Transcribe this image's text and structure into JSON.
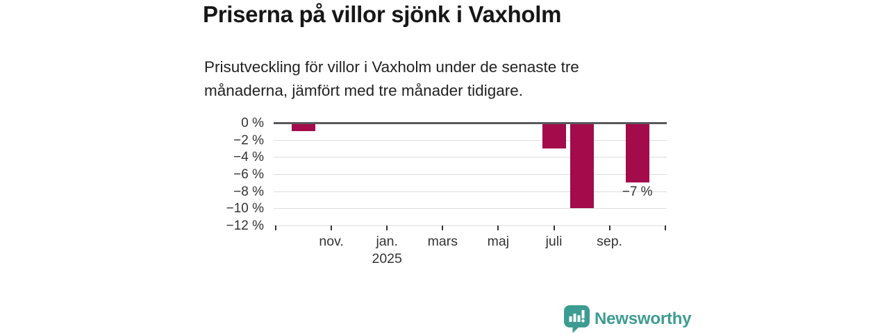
{
  "header": {
    "title": "Priserna på villor sjönk i Vaxholm",
    "subtitle": "Prisutveckling för villor i Vaxholm under de senaste tre månaderna, jämfört med tre månader tidigare.",
    "subtitle_lines": [
      "Prisutveckling för villor i Vaxholm under de senaste tre",
      "månaderna, jämfört med tre månader tidigare."
    ]
  },
  "chart_data": {
    "type": "bar",
    "title": "Priserna på villor sjönk i Vaxholm",
    "x": [
      "2024-10",
      "2025-07",
      "2025-08",
      "2025-10"
    ],
    "values": [
      -1,
      -3,
      -10,
      -7
    ],
    "unit": "%",
    "ylim": [
      -12,
      0
    ],
    "grid": "horizontal",
    "bar_color": "#a30b4a",
    "x_domain": [
      "2024-09",
      "2025-11"
    ],
    "x_ticks": [
      {
        "month": "2024-09",
        "label": ""
      },
      {
        "month": "2024-11",
        "label": "nov."
      },
      {
        "month": "2025-01",
        "label": "jan.",
        "sublabel": "2025"
      },
      {
        "month": "2025-03",
        "label": "mars"
      },
      {
        "month": "2025-05",
        "label": "maj"
      },
      {
        "month": "2025-07",
        "label": "juli"
      },
      {
        "month": "2025-09",
        "label": "sep."
      },
      {
        "month": "2025-11",
        "label": ""
      }
    ],
    "y_ticks": [
      "0 %",
      "−2 %",
      "−4 %",
      "−6 %",
      "−8 %",
      "−10 %",
      "−12 %"
    ],
    "annotation": {
      "text": "−7 %",
      "month": "2025-10"
    }
  },
  "footer": {
    "brand": "Newsworthy",
    "brand_color": "#3d9c92"
  }
}
